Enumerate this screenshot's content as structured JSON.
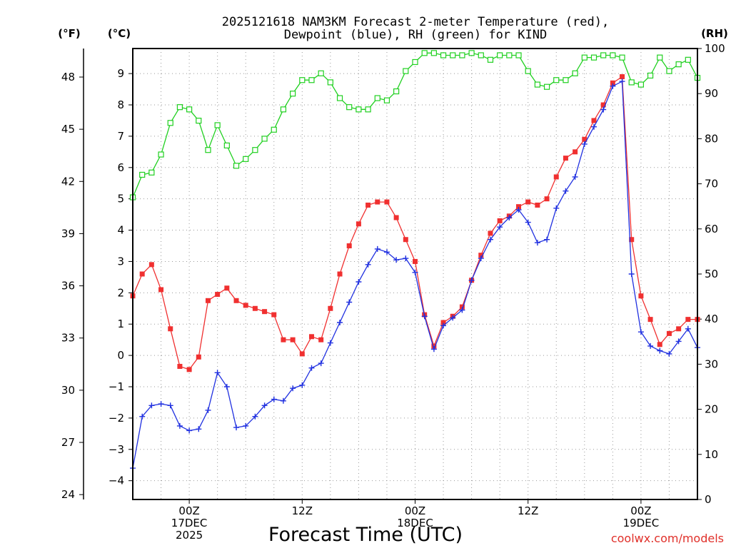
{
  "chart_data": {
    "type": "line",
    "title_lines": [
      "2025121618 NAM3KM Forecast 2-meter Temperature (red),",
      "Dewpoint (blue), RH (green) for KIND"
    ],
    "xlabel": "Forecast Time (UTC)",
    "credit": "coolwx.com/models",
    "units": {
      "f": "(°F)",
      "c": "(°C)",
      "rh": "(RH)"
    },
    "x_range_hours": [
      0,
      60
    ],
    "celsius_axis": {
      "ylim": [
        -4.6,
        9.8
      ],
      "ticks": [
        -4,
        -3,
        -2,
        -1,
        0,
        1,
        2,
        3,
        4,
        5,
        6,
        7,
        8,
        9
      ]
    },
    "fahrenheit_axis": {
      "ticks": [
        24,
        27,
        30,
        33,
        36,
        39,
        42,
        45,
        48
      ]
    },
    "rh_axis": {
      "ylim": [
        0,
        100
      ],
      "ticks": [
        0,
        10,
        20,
        30,
        40,
        50,
        60,
        70,
        80,
        90,
        100
      ]
    },
    "x_ticks": [
      {
        "hour": 6,
        "lines": [
          "00Z",
          "17DEC",
          "2025"
        ]
      },
      {
        "hour": 18,
        "lines": [
          "12Z"
        ]
      },
      {
        "hour": 30,
        "lines": [
          "00Z",
          "18DEC"
        ]
      },
      {
        "hour": 42,
        "lines": [
          "12Z"
        ]
      },
      {
        "hour": 54,
        "lines": [
          "00Z",
          "19DEC"
        ]
      }
    ],
    "series": [
      {
        "name": "2-meter Temperature",
        "unit": "C",
        "color": "#f03030",
        "marker": "filled-square",
        "x": [
          0,
          1,
          2,
          3,
          4,
          5,
          6,
          7,
          8,
          9,
          10,
          11,
          12,
          13,
          14,
          15,
          16,
          17,
          18,
          19,
          20,
          21,
          22,
          23,
          24,
          25,
          26,
          27,
          28,
          29,
          30,
          31,
          32,
          33,
          34,
          35,
          36,
          37,
          38,
          39,
          40,
          41,
          42,
          43,
          44,
          45,
          46,
          47,
          48,
          49,
          50,
          51,
          52,
          53,
          54,
          55,
          56,
          57,
          58,
          59,
          60
        ],
        "values": [
          1.9,
          2.6,
          2.9,
          2.1,
          0.85,
          -0.35,
          -0.45,
          -0.05,
          1.75,
          1.95,
          2.15,
          1.75,
          1.6,
          1.5,
          1.4,
          1.3,
          0.5,
          0.5,
          0.05,
          0.6,
          0.5,
          1.5,
          2.6,
          3.5,
          4.2,
          4.8,
          4.9,
          4.9,
          4.4,
          3.7,
          3.0,
          1.3,
          0.3,
          1.05,
          1.25,
          1.55,
          2.4,
          3.2,
          3.9,
          4.3,
          4.45,
          4.75,
          4.9,
          4.8,
          5.0,
          5.7,
          6.3,
          6.5,
          6.9,
          7.5,
          8.0,
          8.7,
          8.9,
          3.7,
          1.9,
          1.15,
          0.35,
          0.7,
          0.85,
          1.15,
          1.15
        ]
      },
      {
        "name": "Dewpoint",
        "unit": "C",
        "color": "#2030e0",
        "marker": "plus",
        "x": [
          0,
          1,
          2,
          3,
          4,
          5,
          6,
          7,
          8,
          9,
          10,
          11,
          12,
          13,
          14,
          15,
          16,
          17,
          18,
          19,
          20,
          21,
          22,
          23,
          24,
          25,
          26,
          27,
          28,
          29,
          30,
          31,
          32,
          33,
          34,
          35,
          36,
          37,
          38,
          39,
          40,
          41,
          42,
          43,
          44,
          45,
          46,
          47,
          48,
          49,
          50,
          51,
          52,
          53,
          54,
          55,
          56,
          57,
          58,
          59,
          60
        ],
        "values": [
          -3.6,
          -1.95,
          -1.6,
          -1.55,
          -1.6,
          -2.25,
          -2.4,
          -2.35,
          -1.75,
          -0.55,
          -1.0,
          -2.3,
          -2.25,
          -1.95,
          -1.6,
          -1.4,
          -1.45,
          -1.05,
          -0.95,
          -0.4,
          -0.25,
          0.4,
          1.05,
          1.7,
          2.35,
          2.9,
          3.4,
          3.3,
          3.05,
          3.1,
          2.65,
          1.25,
          0.2,
          0.95,
          1.2,
          1.45,
          2.4,
          3.1,
          3.7,
          4.1,
          4.4,
          4.65,
          4.25,
          3.6,
          3.7,
          4.7,
          5.25,
          5.7,
          6.75,
          7.3,
          7.85,
          8.6,
          8.75,
          2.6,
          0.75,
          0.3,
          0.15,
          0.05,
          0.45,
          0.85,
          0.25
        ]
      },
      {
        "name": "RH",
        "unit": "%",
        "color": "#20d020",
        "marker": "open-square",
        "x": [
          0,
          1,
          2,
          3,
          4,
          5,
          6,
          7,
          8,
          9,
          10,
          11,
          12,
          13,
          14,
          15,
          16,
          17,
          18,
          19,
          20,
          21,
          22,
          23,
          24,
          25,
          26,
          27,
          28,
          29,
          30,
          31,
          32,
          33,
          34,
          35,
          36,
          37,
          38,
          39,
          40,
          41,
          42,
          43,
          44,
          45,
          46,
          47,
          48,
          49,
          50,
          51,
          52,
          53,
          54,
          55,
          56,
          57,
          58,
          59,
          60
        ],
        "values": [
          67,
          72,
          72.5,
          76.5,
          83.5,
          87,
          86.5,
          84,
          77.5,
          83,
          78.5,
          74,
          75.5,
          77.5,
          80,
          82,
          86.5,
          90,
          93,
          93,
          94.5,
          92.5,
          89,
          87,
          86.5,
          86.5,
          89,
          88.5,
          90.5,
          95,
          97,
          99,
          99,
          98.5,
          98.5,
          98.5,
          99,
          98.5,
          97.5,
          98.5,
          98.5,
          98.5,
          95,
          92,
          91.5,
          93,
          93,
          94.5,
          98,
          98,
          98.5,
          98.5,
          98,
          92.5,
          92,
          94,
          98,
          95,
          96.5,
          97.5,
          93.5
        ]
      }
    ]
  }
}
